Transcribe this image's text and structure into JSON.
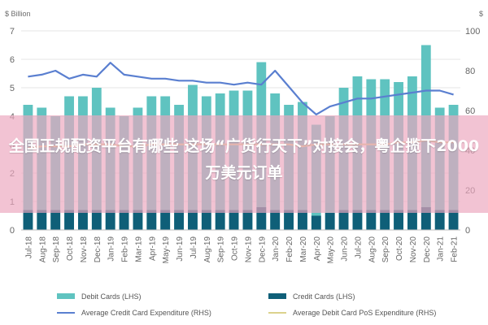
{
  "chart_data": {
    "type": "bar",
    "units": {
      "left": "$ Billion",
      "right": "$"
    },
    "left_axis": {
      "min": 0,
      "max": 7,
      "ticks": [
        "0",
        "1",
        "2",
        "3",
        "4",
        "5",
        "6",
        "7"
      ]
    },
    "right_axis": {
      "min": 0,
      "max": 100,
      "ticks": [
        "0",
        "20",
        "40",
        "60",
        "80",
        "100"
      ]
    },
    "categories": [
      "Jul-18",
      "Aug-18",
      "Sep-18",
      "Oct-18",
      "Nov-18",
      "Dec-18",
      "Jan-19",
      "Feb-19",
      "Mar-19",
      "Apr-19",
      "May-19",
      "Jun-19",
      "Jul-19",
      "Aug-19",
      "Sep-19",
      "Oct-19",
      "Nov-19",
      "Dec-19",
      "Jan-20",
      "Feb-20",
      "Mar-20",
      "Apr-20",
      "May-20",
      "Jun-20",
      "Jul-20",
      "Aug-20",
      "Sep-20",
      "Oct-20",
      "Nov-20",
      "Dec-20",
      "Jan-21",
      "Feb-21"
    ],
    "series": [
      {
        "name": "Debit Cards (LHS)",
        "kind": "bar",
        "axis": "left",
        "color": "#5fc3c0",
        "values": [
          4.4,
          4.3,
          4.0,
          4.7,
          4.7,
          5.0,
          4.3,
          4.0,
          4.3,
          4.7,
          4.7,
          4.4,
          5.1,
          4.7,
          4.8,
          4.9,
          4.9,
          5.9,
          4.8,
          4.4,
          4.5,
          3.7,
          4.0,
          5.0,
          5.4,
          5.3,
          5.3,
          5.2,
          5.4,
          6.5,
          4.3,
          4.4
        ]
      },
      {
        "name": "Credit Cards (LHS)",
        "kind": "bar",
        "axis": "left",
        "color": "#0f5f78",
        "values": [
          0.7,
          0.7,
          0.7,
          0.7,
          0.7,
          0.7,
          0.7,
          0.7,
          0.7,
          0.7,
          0.7,
          0.7,
          0.7,
          0.7,
          0.7,
          0.7,
          0.7,
          0.8,
          0.7,
          0.7,
          0.7,
          0.5,
          0.6,
          0.7,
          0.7,
          0.7,
          0.7,
          0.7,
          0.7,
          0.8,
          0.7,
          0.7
        ]
      },
      {
        "name": "Average Credit Card Expenditure (RHS)",
        "kind": "line",
        "axis": "right",
        "color": "#5a7fd0",
        "values": [
          77,
          78,
          80,
          76,
          78,
          77,
          84,
          78,
          77,
          76,
          76,
          75,
          75,
          74,
          74,
          73,
          74,
          73,
          80,
          72,
          64,
          58,
          62,
          64,
          66,
          66,
          67,
          68,
          69,
          70,
          70,
          68
        ]
      },
      {
        "name": "Average Debit Card PoS Expenditure (RHS)",
        "kind": "line",
        "axis": "right",
        "color": "#dcd28c",
        "values": [
          41,
          42,
          42,
          42,
          43,
          43,
          43,
          42,
          42,
          43,
          43,
          43,
          43,
          43,
          43,
          43,
          43,
          43,
          43,
          43,
          42,
          43,
          43,
          43,
          43,
          43,
          43,
          44,
          44,
          45,
          44,
          44
        ]
      }
    ],
    "grid": "horizontal",
    "legend_position": "bottom"
  },
  "overlay": {
    "headline": "全国正规配资平台有哪些 这场“广货行天下”对接会，粤企揽下2000万美元订单"
  },
  "legend": {
    "debit": "Debit Cards (LHS)",
    "credit": "Credit Cards (LHS)",
    "avg_credit": "Average Credit Card Expenditure (RHS)",
    "avg_debit": "Average Debit Card PoS Expenditure (RHS)"
  }
}
